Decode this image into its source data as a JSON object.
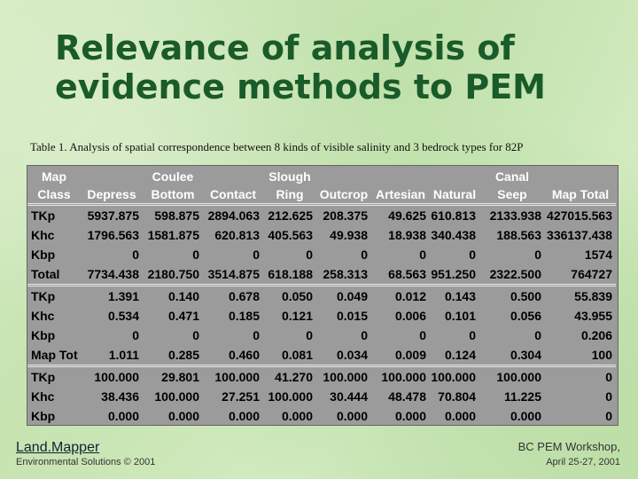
{
  "slide": {
    "title": "Relevance of analysis of evidence methods to PEM",
    "caption": "Table 1. Analysis of spatial correspondence between 8 kinds of visible salinity and 3 bedrock types for 82P"
  },
  "table": {
    "headers": [
      [
        "Map",
        "Class"
      ],
      [
        "",
        "Depress"
      ],
      [
        "Coulee",
        "Bottom"
      ],
      [
        "",
        "Contact"
      ],
      [
        "Slough",
        "Ring"
      ],
      [
        "",
        "Outcrop"
      ],
      [
        "",
        "Artesian"
      ],
      [
        "",
        "Natural"
      ],
      [
        "Canal",
        "Seep"
      ],
      [
        "",
        "Map Total"
      ]
    ],
    "groups": [
      [
        [
          "TKp",
          "5937.875",
          "598.875",
          "2894.063",
          "212.625",
          "208.375",
          "49.625",
          "610.813",
          "2133.938",
          "427015.563"
        ],
        [
          "Khc",
          "1796.563",
          "1581.875",
          "620.813",
          "405.563",
          "49.938",
          "18.938",
          "340.438",
          "188.563",
          "336137.438"
        ],
        [
          "Kbp",
          "0",
          "0",
          "0",
          "0",
          "0",
          "0",
          "0",
          "0",
          "1574"
        ],
        [
          "Total",
          "7734.438",
          "2180.750",
          "3514.875",
          "618.188",
          "258.313",
          "68.563",
          "951.250",
          "2322.500",
          "764727"
        ]
      ],
      [
        [
          "TKp",
          "1.391",
          "0.140",
          "0.678",
          "0.050",
          "0.049",
          "0.012",
          "0.143",
          "0.500",
          "55.839"
        ],
        [
          "Khc",
          "0.534",
          "0.471",
          "0.185",
          "0.121",
          "0.015",
          "0.006",
          "0.101",
          "0.056",
          "43.955"
        ],
        [
          "Kbp",
          "0",
          "0",
          "0",
          "0",
          "0",
          "0",
          "0",
          "0",
          "0.206"
        ],
        [
          "Map Tot",
          "1.011",
          "0.285",
          "0.460",
          "0.081",
          "0.034",
          "0.009",
          "0.124",
          "0.304",
          "100"
        ]
      ],
      [
        [
          "TKp",
          "100.000",
          "29.801",
          "100.000",
          "41.270",
          "100.000",
          "100.000",
          "100.000",
          "100.000",
          "0"
        ],
        [
          "Khc",
          "38.436",
          "100.000",
          "27.251",
          "100.000",
          "30.444",
          "48.478",
          "70.804",
          "11.225",
          "0"
        ],
        [
          "Kbp",
          "0.000",
          "0.000",
          "0.000",
          "0.000",
          "0.000",
          "0.000",
          "0.000",
          "0.000",
          "0"
        ]
      ]
    ]
  },
  "footer": {
    "left_title": "Land.Mapper",
    "left_sub": "Environmental Solutions © 2001",
    "right_title": "BC PEM Workshop,",
    "right_sub": "April 25-27, 2001"
  }
}
